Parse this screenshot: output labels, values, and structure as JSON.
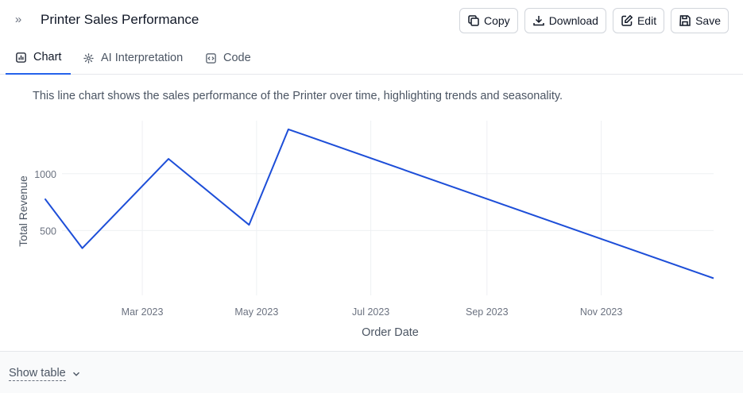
{
  "header": {
    "title": "Printer Sales Performance",
    "actions": {
      "copy": "Copy",
      "download": "Download",
      "edit": "Edit",
      "save": "Save"
    }
  },
  "tabs": [
    {
      "label": "Chart",
      "icon": "bar-chart-icon",
      "active": true
    },
    {
      "label": "AI Interpretation",
      "icon": "sparkle-icon",
      "active": false
    },
    {
      "label": "Code",
      "icon": "code-icon",
      "active": false
    }
  ],
  "description": "This line chart shows the sales performance of the Printer over time, highlighting trends and seasonality.",
  "footer": {
    "show_table": "Show table"
  },
  "colors": {
    "line": "#1d4ed8",
    "accent": "#2563eb",
    "grid": "#eef0f3",
    "tick": "#6b7280"
  },
  "chart_data": {
    "type": "line",
    "xlabel": "Order Date",
    "ylabel": "Total Revenue",
    "x": [
      "2023-01-08",
      "2023-01-28",
      "2023-03-15",
      "2023-04-27",
      "2023-05-18",
      "2023-12-31"
    ],
    "series": [
      {
        "values": [
          780,
          345,
          1130,
          550,
          1390,
          80
        ]
      }
    ],
    "xlim": [
      "2023-01-01",
      "2023-12-31"
    ],
    "ylim": [
      0,
      1480
    ],
    "xticks": [
      {
        "date": "2023-03-01",
        "label": "Mar 2023"
      },
      {
        "date": "2023-05-01",
        "label": "May 2023"
      },
      {
        "date": "2023-07-01",
        "label": "Jul 2023"
      },
      {
        "date": "2023-09-01",
        "label": "Sep 2023"
      },
      {
        "date": "2023-11-01",
        "label": "Nov 2023"
      }
    ],
    "yticks": [
      500,
      1000
    ],
    "grid": true
  }
}
